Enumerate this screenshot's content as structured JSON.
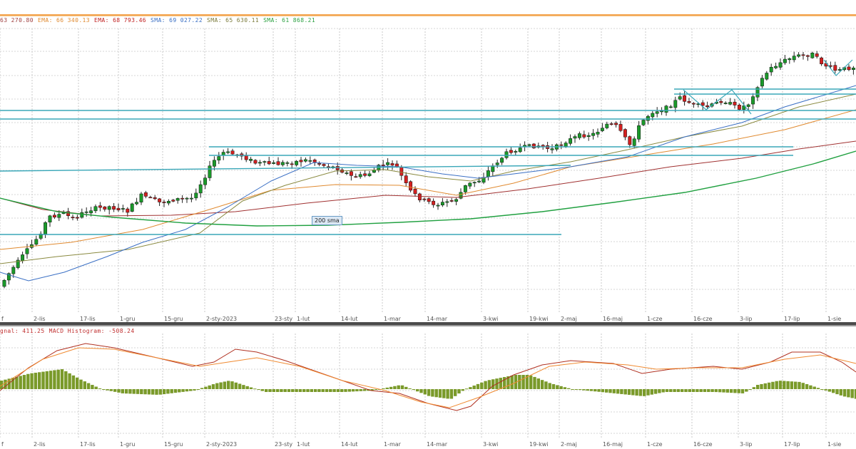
{
  "legend_main": [
    {
      "text": "63 270.80",
      "color": "#a04040"
    },
    {
      "text": "EMA: 66 340.13",
      "color": "#e08a30"
    },
    {
      "text": "EMA: 68 793.46",
      "color": "#c02020"
    },
    {
      "text": "SMA: 69 027.22",
      "color": "#3a6fc4"
    },
    {
      "text": "SMA: 65 630.11",
      "color": "#7a7a3a"
    },
    {
      "text": "SMA: 61 868.21",
      "color": "#2aa040"
    }
  ],
  "legend_macd": [
    {
      "text": "gnal: 411.25",
      "color": "#c03030"
    },
    {
      "text": "MACD Histogram: -508.24",
      "color": "#c03030"
    }
  ],
  "annotation_200sma": "200 sma",
  "colors": {
    "up": "#1a9a2a",
    "down": "#d42020",
    "hist": "#7a9a2a",
    "ema_fast": "#e08a30",
    "ema_slow": "#a03030",
    "sma_blue": "#3a6fc4",
    "sma_olive": "#8a8a40",
    "sma_green": "#20a040",
    "hline": "#3aa7b8",
    "macd": "#b03020",
    "signal": "#f08a30"
  },
  "chart_data": [
    {
      "type": "candlestick",
      "x_tick_labels": [
        "2-lis",
        "17-lis",
        "1-gru",
        "15-gru",
        "2-sty-2023",
        "23-sty",
        "1-lut",
        "14-lut",
        "1-mar",
        "14-mar",
        "3-kwi",
        "19-kwi",
        "2-maj",
        "16-maj",
        "1-cze",
        "16-cze",
        "3-lip",
        "17-lip",
        "1-sie"
      ],
      "grid": true,
      "legend": "top-left"
    },
    {
      "type": "bar",
      "series": [
        {
          "name": "MACD Histogram"
        },
        {
          "name": "gnal"
        }
      ],
      "x_tick_labels": [
        "2-lis",
        "17-lis",
        "1-gru",
        "15-gru",
        "2-sty-2023",
        "23-sty",
        "1-lut",
        "14-lut",
        "1-mar",
        "14-mar",
        "3-kwi",
        "19-kwi",
        "2-maj",
        "16-maj",
        "1-cze",
        "16-cze",
        "3-lip",
        "17-lip",
        "1-sie"
      ],
      "grid": true,
      "legend": "top-left"
    }
  ]
}
